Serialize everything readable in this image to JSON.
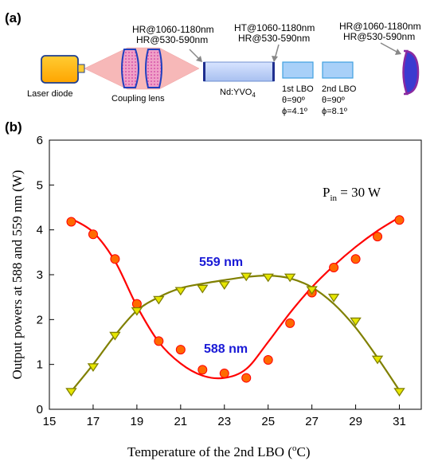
{
  "panel_a": {
    "label": "(a)",
    "components": {
      "laser": "Laser diode",
      "lens": "Coupling lens",
      "crystal": "Nd:YVO",
      "crystal_sub": "4",
      "lbo1": {
        "name": "1st LBO",
        "theta": "θ=90º",
        "phi": "ϕ=4.1º"
      },
      "lbo2": {
        "name": "2nd LBO",
        "theta": "θ=90º",
        "phi": "ϕ=8.1º"
      }
    },
    "coatings": {
      "input_line1": "HR@1060-1180nm",
      "input_line2": "HR@530-590nm",
      "crystal_line1": "HT@1060-1180nm",
      "crystal_line2": "HR@530-590nm",
      "output_line1": "HR@1060-1180nm",
      "output_line2": "HR@530-590nm"
    }
  },
  "chart_data": {
    "type": "scatter",
    "panel_label": "(b)",
    "xlabel": "Temperature of the 2nd LBO (",
    "xlabel_unit_sup": "o",
    "xlabel_unit": "C)",
    "ylabel": "Output powers at 588 and 559 nm (W)",
    "xlim": [
      15,
      32
    ],
    "ylim": [
      0,
      6
    ],
    "x_ticks": [
      15,
      17,
      19,
      21,
      23,
      25,
      27,
      29,
      31
    ],
    "y_ticks": [
      0,
      1,
      2,
      3,
      4,
      5,
      6
    ],
    "annotation": {
      "text": "P",
      "sub": "in",
      "rest": " = 30 W"
    },
    "series": [
      {
        "name": "588 nm",
        "marker": "circle",
        "color": "#ff0000",
        "marker_fill": "#ff6a00",
        "x": [
          16,
          17,
          18,
          19,
          20,
          21,
          22,
          23,
          24,
          25,
          26,
          27,
          28,
          29,
          30,
          31
        ],
        "y": [
          4.18,
          3.9,
          3.35,
          2.35,
          1.52,
          1.33,
          0.88,
          0.8,
          0.7,
          1.1,
          1.92,
          2.6,
          3.16,
          3.35,
          3.85,
          4.22
        ],
        "fit_x": [
          16,
          17,
          18,
          19,
          20,
          21,
          22,
          23,
          24,
          25,
          26,
          27,
          28,
          29,
          30,
          31
        ],
        "fit_y": [
          4.25,
          3.95,
          3.3,
          2.3,
          1.5,
          1.02,
          0.75,
          0.7,
          0.9,
          1.5,
          2.15,
          2.72,
          3.2,
          3.62,
          3.98,
          4.28
        ]
      },
      {
        "name": "559 nm",
        "marker": "triangle-down",
        "color": "#808000",
        "marker_fill": "#e6e600",
        "x": [
          16,
          17,
          18,
          19,
          20,
          21,
          22,
          23,
          24,
          25,
          26,
          27,
          28,
          29,
          30,
          31
        ],
        "y": [
          0.4,
          0.95,
          1.65,
          2.2,
          2.45,
          2.65,
          2.7,
          2.78,
          2.97,
          2.95,
          2.95,
          2.67,
          2.5,
          1.97,
          1.12,
          0.4
        ],
        "fit_x": [
          16,
          17,
          18,
          19,
          20,
          21,
          22,
          23,
          24,
          25,
          26,
          27,
          28,
          29,
          30,
          31
        ],
        "fit_y": [
          0.4,
          1.0,
          1.65,
          2.2,
          2.5,
          2.7,
          2.8,
          2.88,
          2.95,
          2.98,
          2.92,
          2.72,
          2.35,
          1.82,
          1.15,
          0.42
        ]
      }
    ]
  }
}
